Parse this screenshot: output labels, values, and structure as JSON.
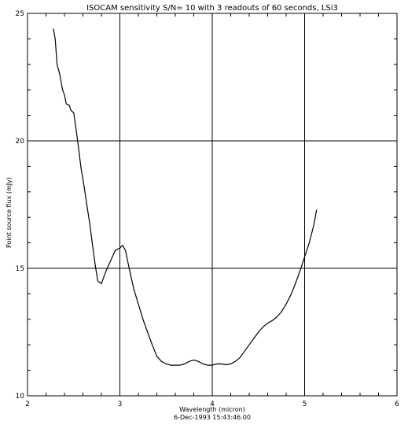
{
  "chart_data": {
    "type": "line",
    "title": "ISOCAM sensitivity S/N= 10 with 3 readouts of 60 seconds, LSi3",
    "xlabel": "Wavelength (micron)",
    "ylabel": "Point source flux (mJy)",
    "footer": "6-Dec-1993 15:43:46.00",
    "xlim": [
      2,
      6
    ],
    "ylim": [
      10,
      25
    ],
    "xticks": [
      2,
      3,
      4,
      5,
      6
    ],
    "xtick_labels": [
      "2",
      "3",
      "4",
      "5",
      "6"
    ],
    "yticks": [
      10,
      15,
      20,
      25
    ],
    "ytick_labels": [
      "10",
      "15",
      "20",
      "25"
    ],
    "grid": true,
    "line_color": "#000000",
    "grid_color": "#000000",
    "series": [
      {
        "x": [
          2.28,
          2.3,
          2.32,
          2.35,
          2.38,
          2.4,
          2.42,
          2.45,
          2.47,
          2.5,
          2.52,
          2.55,
          2.58,
          2.6,
          2.63,
          2.65,
          2.68,
          2.7,
          2.73,
          2.76,
          2.8,
          2.85,
          2.9,
          2.95,
          3.0,
          3.03,
          3.06,
          3.1,
          3.15,
          3.2,
          3.25,
          3.3,
          3.35,
          3.4,
          3.45,
          3.5,
          3.55,
          3.6,
          3.65,
          3.7,
          3.75,
          3.8,
          3.85,
          3.9,
          3.95,
          4.0,
          4.05,
          4.1,
          4.15,
          4.2,
          4.25,
          4.3,
          4.35,
          4.4,
          4.45,
          4.5,
          4.55,
          4.6,
          4.65,
          4.7,
          4.75,
          4.8,
          4.85,
          4.9,
          4.95,
          5.0,
          5.05,
          5.1,
          5.13
        ],
        "y": [
          24.4,
          24.0,
          23.0,
          22.6,
          22.0,
          21.8,
          21.45,
          21.4,
          21.2,
          21.1,
          20.6,
          19.8,
          18.9,
          18.5,
          17.8,
          17.3,
          16.6,
          16.0,
          15.2,
          14.5,
          14.4,
          14.9,
          15.3,
          15.7,
          15.8,
          15.9,
          15.7,
          15.0,
          14.2,
          13.6,
          13.0,
          12.5,
          12.0,
          11.55,
          11.35,
          11.25,
          11.2,
          11.2,
          11.2,
          11.25,
          11.35,
          11.4,
          11.35,
          11.25,
          11.2,
          11.2,
          11.25,
          11.25,
          11.22,
          11.25,
          11.35,
          11.5,
          11.75,
          12.0,
          12.25,
          12.5,
          12.7,
          12.85,
          12.95,
          13.1,
          13.3,
          13.6,
          13.95,
          14.4,
          14.9,
          15.45,
          16.0,
          16.7,
          17.3
        ]
      }
    ]
  }
}
